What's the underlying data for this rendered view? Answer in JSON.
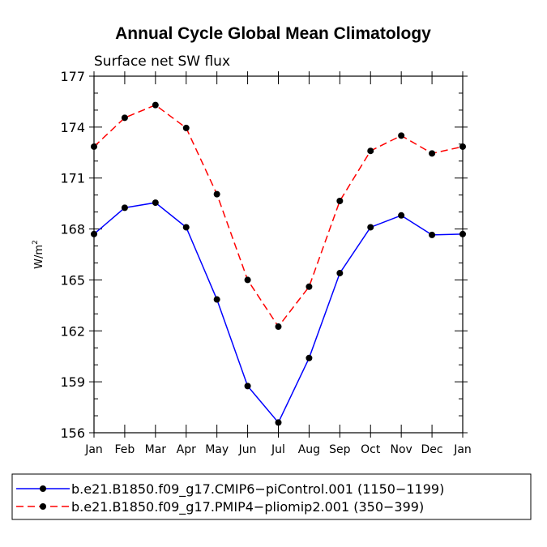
{
  "chart_data": {
    "type": "line",
    "title": "Annual Cycle Global Mean Climatology",
    "subtitle": "Surface net SW flux",
    "ylabel": "W/m",
    "ylabel_superscript": "2",
    "xlabel": "",
    "categories": [
      "Jan",
      "Feb",
      "Mar",
      "Apr",
      "May",
      "Jun",
      "Jul",
      "Aug",
      "Sep",
      "Oct",
      "Nov",
      "Dec",
      "Jan"
    ],
    "ylim": [
      156,
      177
    ],
    "yticks": [
      156,
      159,
      162,
      165,
      168,
      171,
      174,
      177
    ],
    "ytick_labels": [
      "156",
      "159",
      "162",
      "165",
      "168",
      "171",
      "174",
      "177"
    ],
    "series": [
      {
        "name": "b.e21.B1850.f09_g17.CMIP6-piControl.001 (1150-1199)",
        "legend_label": "b.e21.B1850.f09_g17.CMIP6−piControl.001 (1150−1199)",
        "color": "#0000ff",
        "dash": "solid",
        "values": [
          167.7,
          169.25,
          169.55,
          168.1,
          163.85,
          158.75,
          156.6,
          160.4,
          165.4,
          168.1,
          168.8,
          167.65,
          167.7
        ]
      },
      {
        "name": "b.e21.B1850.f09_g17.PMIP4-pliomip2.001 (350-399)",
        "legend_label": "b.e21.B1850.f09_g17.PMIP4−pliomip2.001 (350−399)",
        "color": "#ff0000",
        "dash": "dashed",
        "values": [
          172.85,
          174.55,
          175.3,
          173.95,
          170.05,
          165.0,
          162.25,
          164.6,
          169.65,
          172.6,
          173.5,
          172.45,
          172.85
        ]
      }
    ],
    "marker_color": "#000000",
    "legend_position": "bottom"
  }
}
